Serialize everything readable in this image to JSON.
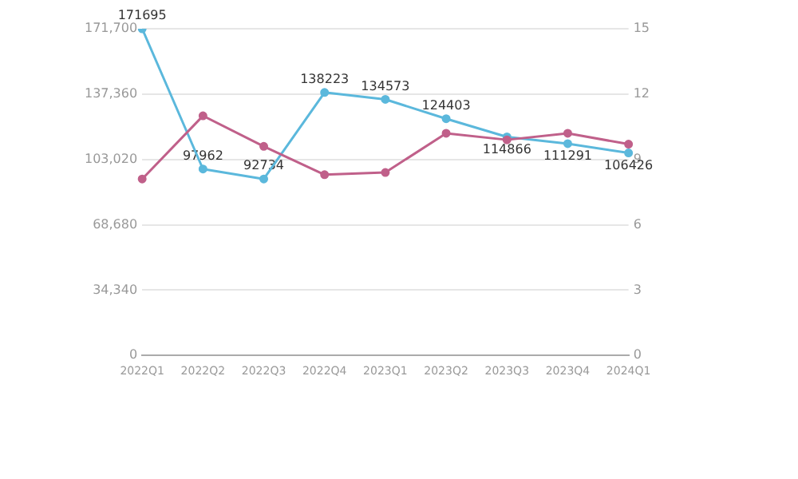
{
  "chart_data": {
    "type": "line",
    "categories": [
      "2022Q1",
      "2022Q2",
      "2022Q3",
      "2022Q4",
      "2023Q1",
      "2023Q2",
      "2023Q3",
      "2023Q4",
      "2024Q1"
    ],
    "series": [
      {
        "color": "#5bb8dc",
        "values": [
          171695,
          97962,
          92734,
          138223,
          134573,
          124403,
          114866,
          111291,
          106426
        ],
        "value_labels": [
          "171695",
          "97962",
          "92734",
          "138223",
          "134573",
          "124403",
          "114866",
          "111291",
          "106426"
        ]
      },
      {
        "color": "#c0608a",
        "axis": "y2",
        "values": [
          8.1,
          11.0,
          9.6,
          8.3,
          8.4,
          10.2,
          9.9,
          10.2,
          9.7
        ]
      }
    ],
    "ylim": [
      0,
      171700
    ],
    "yticks": [
      0,
      {
        "value": 34340,
        "label": "34,340"
      },
      {
        "value": 68680,
        "label": "68,680"
      },
      {
        "value": 103020,
        "label": "103,020"
      },
      {
        "value": 137360,
        "label": "137,360"
      },
      {
        "value": 171700,
        "label": "171,700"
      }
    ],
    "y2lim": [
      0,
      15
    ],
    "y2ticks": [
      0,
      3,
      6,
      9,
      12,
      15
    ],
    "grid": "y",
    "legend": false,
    "marker": "circle",
    "line_style": "solid"
  }
}
